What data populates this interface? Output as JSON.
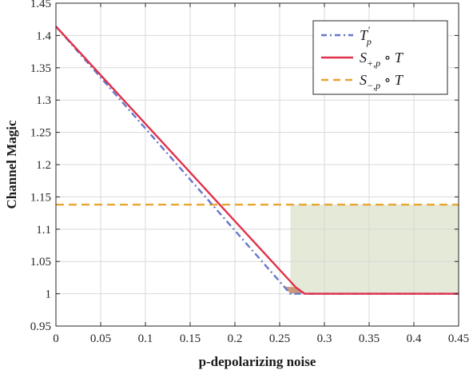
{
  "chart_data": {
    "type": "line",
    "xlabel": "p-depolarizing noise",
    "ylabel": "Channel Magic",
    "xlim": [
      0,
      0.45
    ],
    "ylim": [
      0.95,
      1.45
    ],
    "xticks": [
      0,
      0.05,
      0.1,
      0.15,
      0.2,
      0.25,
      0.3,
      0.35,
      0.4,
      0.45
    ],
    "yticks": [
      0.95,
      1,
      1.05,
      1.1,
      1.15,
      1.2,
      1.25,
      1.3,
      1.35,
      1.4,
      1.45
    ],
    "grid": true,
    "legend_position": "top-right",
    "series": [
      {
        "name": "T′p",
        "style": "dash-dot",
        "color": "#6677cc",
        "x": [
          0,
          0.262,
          0.45
        ],
        "y": [
          1.414,
          1.0,
          1.0
        ]
      },
      {
        "name": "S+,p ∘ T",
        "style": "solid",
        "color": "#e0304a",
        "x": [
          0,
          0.268,
          0.278,
          0.45
        ],
        "y": [
          1.414,
          1.01,
          1.0,
          1.0
        ]
      },
      {
        "name": "S−,p ∘ T",
        "style": "dashed",
        "color": "#e8a530",
        "x": [
          0,
          0.45
        ],
        "y": [
          1.138,
          1.138
        ]
      }
    ],
    "shaded_regions": [
      {
        "color": "#e4e9d8",
        "x": [
          0.262,
          0.45
        ],
        "y": [
          1.0,
          1.138
        ]
      }
    ],
    "shaded_gap": {
      "color": "#c98a6a"
    }
  },
  "legend": [
    {
      "main": "T",
      "sup": "′",
      "sub": "p",
      "color": "#6677cc",
      "dash": "7,4,2,4"
    },
    {
      "main": "S",
      "sup": "",
      "sub": "+,p",
      "tail": " ∘ T",
      "color": "#e0304a",
      "dash": ""
    },
    {
      "main": "S",
      "sup": "",
      "sub": "−,p",
      "tail": " ∘ T",
      "color": "#e8a530",
      "dash": "9,6"
    }
  ]
}
